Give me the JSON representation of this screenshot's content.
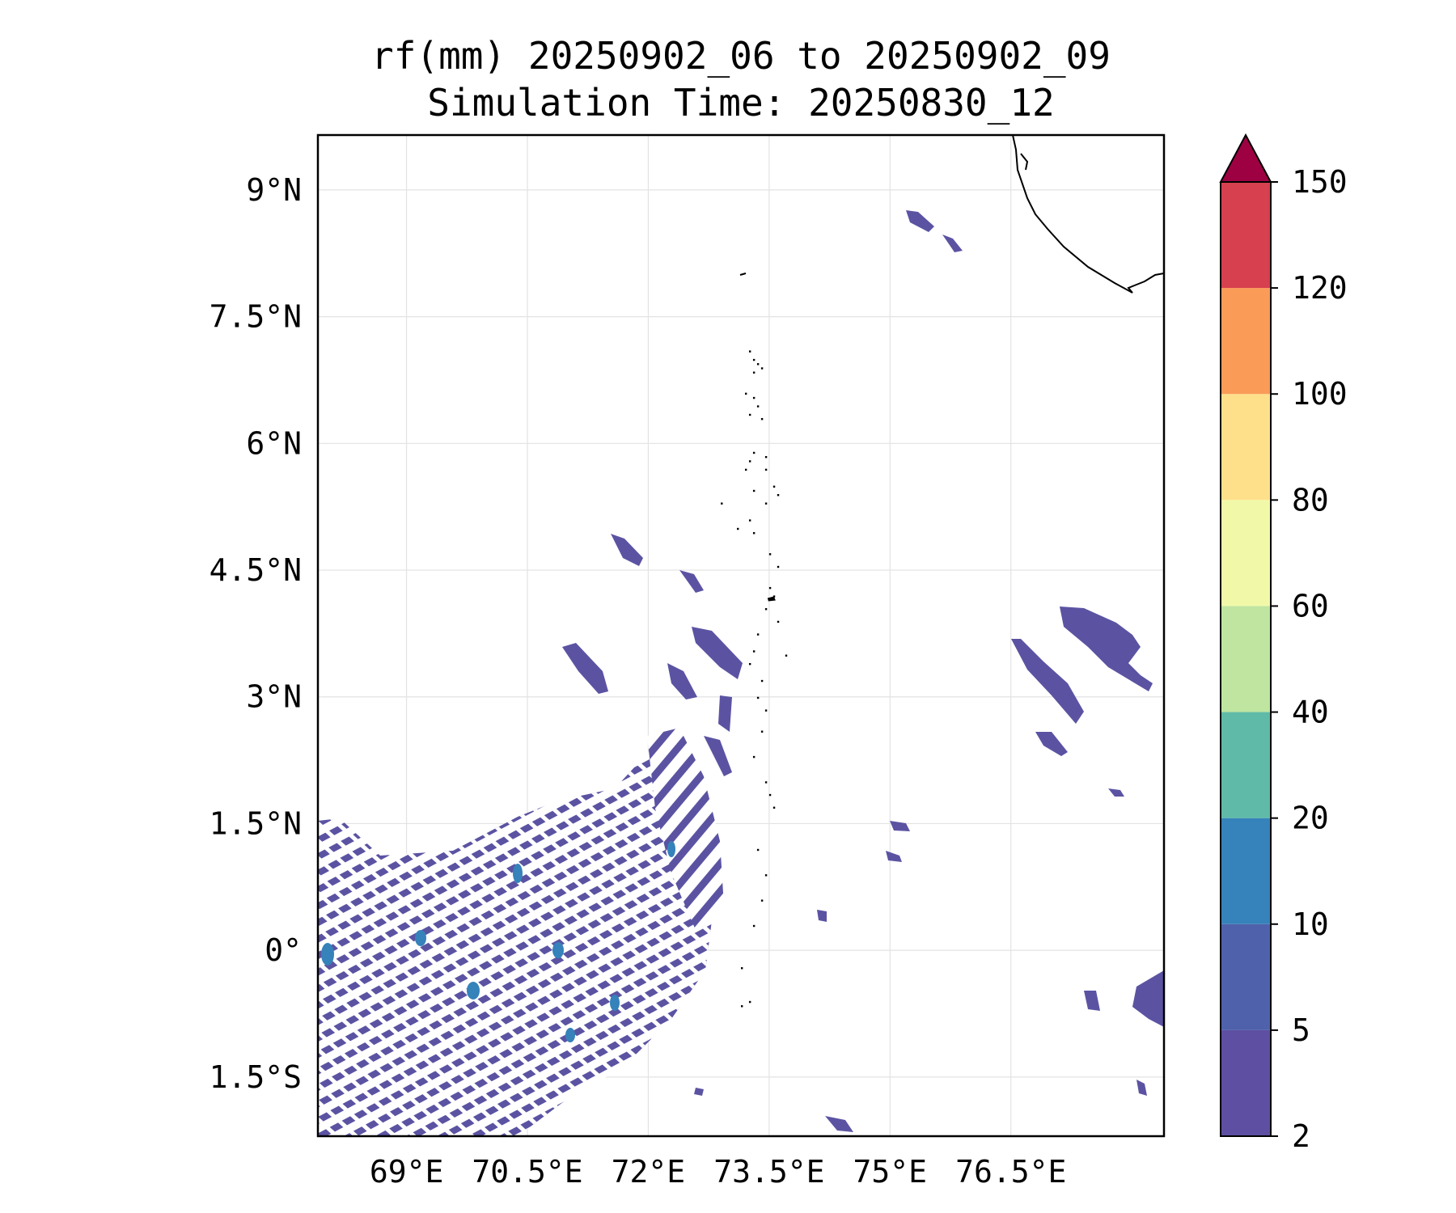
{
  "title": {
    "line1": "rf(mm) 20250902_06 to 20250902_09",
    "line2": "Simulation Time: 20250830_12"
  },
  "map": {
    "lon_range": [
      67.9,
      78.4
    ],
    "lat_range": [
      -2.2,
      9.65
    ],
    "x_ticks": [
      {
        "value": 69.0,
        "label": "69°E"
      },
      {
        "value": 70.5,
        "label": "70.5°E"
      },
      {
        "value": 72.0,
        "label": "72°E"
      },
      {
        "value": 73.5,
        "label": "73.5°E"
      },
      {
        "value": 75.0,
        "label": "75°E"
      },
      {
        "value": 76.5,
        "label": "76.5°E"
      }
    ],
    "y_ticks": [
      {
        "value": 9.0,
        "label": "9°N"
      },
      {
        "value": 7.5,
        "label": "7.5°N"
      },
      {
        "value": 6.0,
        "label": "6°N"
      },
      {
        "value": 4.5,
        "label": "4.5°N"
      },
      {
        "value": 3.0,
        "label": "3°N"
      },
      {
        "value": 1.5,
        "label": "1.5°N"
      },
      {
        "value": 0.0,
        "label": "0°"
      },
      {
        "value": -1.5,
        "label": "1.5°S"
      }
    ],
    "gridlines": true,
    "coastline_color": "#000000"
  },
  "colorbar": {
    "levels": [
      2,
      5,
      10,
      20,
      40,
      60,
      80,
      100,
      120,
      150
    ],
    "labels": [
      "2",
      "5",
      "10",
      "20",
      "40",
      "60",
      "80",
      "100",
      "120",
      "150"
    ],
    "colors": [
      "#5e4fa2",
      "#4f61aa",
      "#3682ba",
      "#5fbaa8",
      "#bfe5a0",
      "#f1f9a9",
      "#fee08b",
      "#fa9b58",
      "#d7404e"
    ],
    "extend_color": "#9e0142",
    "extend": "max"
  },
  "chart_data": {
    "type": "heatmap",
    "title": "rf(mm) 20250902_06 to 20250902_09 Simulation Time: 20250830_12",
    "units": "mm",
    "xlabel": "",
    "ylabel": "",
    "xlim": [
      67.9,
      78.4
    ],
    "ylim": [
      -2.2,
      9.65
    ],
    "rain_regions": [
      {
        "name": "southwest-band-cluster",
        "lon": [
          67.9,
          73.2
        ],
        "lat": [
          -2.2,
          2.8
        ],
        "max_level": "10-20"
      },
      {
        "name": "maldives-streaks",
        "lon": [
          70.5,
          73.5
        ],
        "lat": [
          2.6,
          5.2
        ],
        "max_level": "5-10"
      },
      {
        "name": "east-streaks",
        "lon": [
          76.2,
          78.4
        ],
        "lat": [
          2.5,
          4.5
        ],
        "max_level": "2-5"
      },
      {
        "name": "northeast-patch",
        "lon": [
          75.0,
          75.6
        ],
        "lat": [
          8.6,
          9.0
        ],
        "max_level": "2-5"
      },
      {
        "name": "southeast-scatter",
        "lon": [
          74.0,
          78.4
        ],
        "lat": [
          -2.2,
          1.5
        ],
        "max_level": "2-5"
      }
    ]
  }
}
